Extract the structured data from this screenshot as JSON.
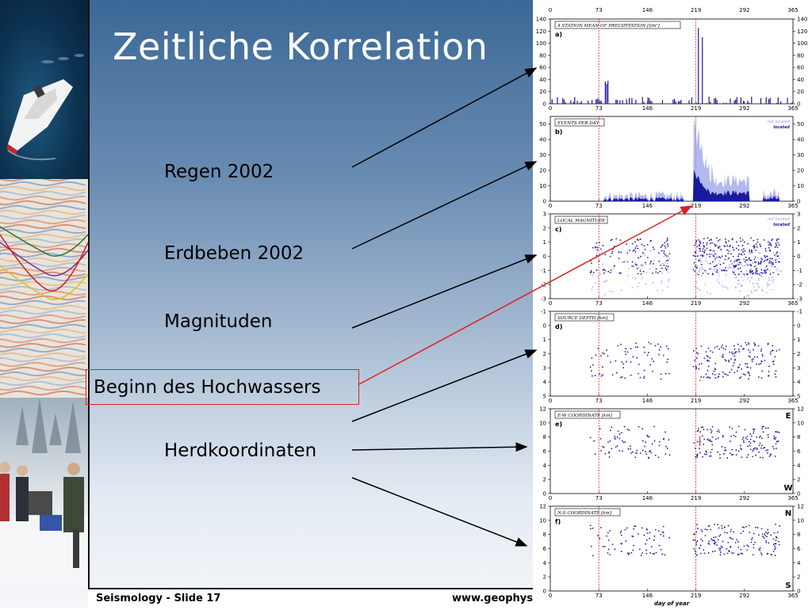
{
  "slide": {
    "title": "Zeitliche Korrelation",
    "bullets": [
      "Regen 2002",
      "Erdbeben 2002",
      "Magnituden",
      "Beginn des Hochwassers",
      "Herdkoordinaten"
    ],
    "highlight_color": "#e02020",
    "footer_left": "Seismology - Slide 17",
    "footer_right": "www.geophys"
  },
  "figure": {
    "x_ticks": [
      "0",
      "73",
      "146",
      "219",
      "292",
      "365"
    ],
    "x_label": "day of year",
    "marker_days": [
      "73",
      "219"
    ],
    "series_color": "#1a1aa0",
    "faint_color": "#9aa0e8",
    "marker_color": "#e02020",
    "panels": [
      {
        "letter": "a)",
        "title": "4 STATION MEAN OF PRECIPITATION [l/m²]",
        "y_ticks": [
          "0",
          "20",
          "40",
          "60",
          "80",
          "100",
          "120",
          "140"
        ],
        "ylim": [
          0,
          140
        ],
        "type": "bar"
      },
      {
        "letter": "b)",
        "title": "EVENTS PER DAY",
        "legend": [
          "not located",
          "located"
        ],
        "y_ticks": [
          "0",
          "10",
          "20",
          "30",
          "40",
          "50"
        ],
        "ylim": [
          0,
          55
        ],
        "type": "area"
      },
      {
        "letter": "c)",
        "title": "LOCAL MAGNITUDE",
        "legend": [
          "not located",
          "located"
        ],
        "y_ticks": [
          "-3",
          "-2",
          "-1",
          "0",
          "1",
          "2",
          "3"
        ],
        "ylim": [
          -3,
          3
        ],
        "type": "scatter"
      },
      {
        "letter": "d)",
        "title": "SOURCE DEPTH [km]",
        "y_ticks": [
          "-1",
          "0",
          "1",
          "2",
          "3",
          "4",
          "5"
        ],
        "ylim": [
          -1,
          5
        ],
        "inverted": true,
        "type": "scatter"
      },
      {
        "letter": "e)",
        "title": "E-W COORDINATE [km]",
        "y_ticks": [
          "0",
          "2",
          "4",
          "6",
          "8",
          "10",
          "12"
        ],
        "ylim": [
          0,
          12
        ],
        "top_corner": "E",
        "bottom_corner": "W",
        "type": "scatter"
      },
      {
        "letter": "f)",
        "title": "N-S COORDINATE [km]",
        "y_ticks": [
          "0",
          "2",
          "4",
          "6",
          "8",
          "10",
          "12"
        ],
        "ylim": [
          0,
          12
        ],
        "top_corner": "N",
        "bottom_corner": "S",
        "type": "scatter"
      }
    ]
  }
}
